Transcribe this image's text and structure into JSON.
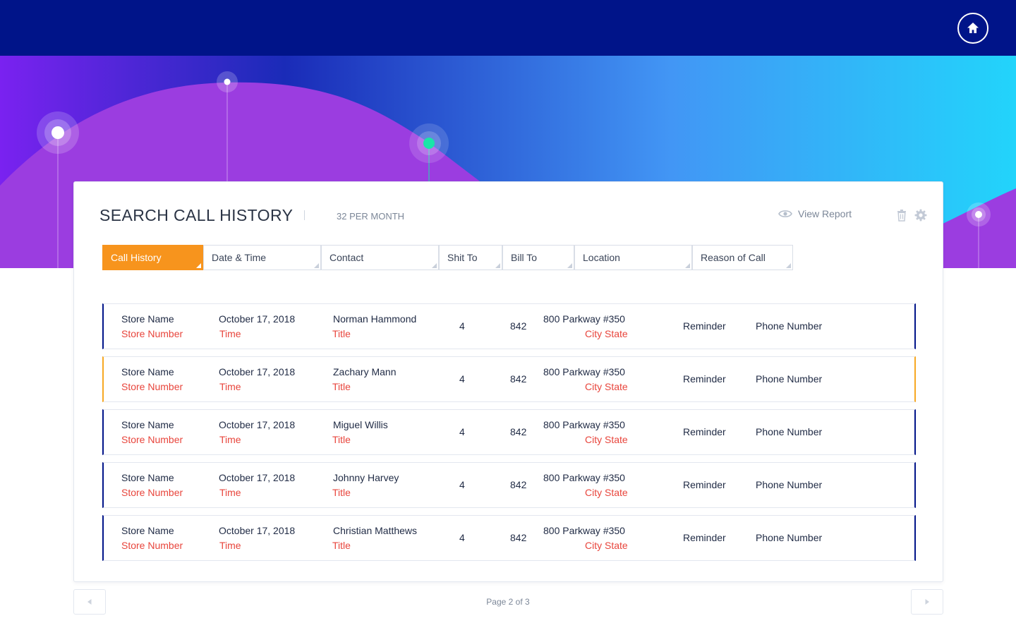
{
  "colors": {
    "top_bar": "#001489",
    "accent": "#f7941d",
    "row_border": "#001489",
    "row_highlight_border": "#f7a823",
    "secondary_text": "#e8453c",
    "hero_gradient": [
      "#7a22f0",
      "#1a2bb8",
      "#4296f5",
      "#22d4fb"
    ],
    "wave": "#9b3de0",
    "marker_green": "#19e6a8"
  },
  "header": {
    "home_icon": "home-icon"
  },
  "card": {
    "title": "SEARCH CALL HISTORY",
    "per_month": "32 PER MONTH",
    "view_report_label": "View Report",
    "view_report_icon": "eye-icon",
    "delete_icon": "trash-icon",
    "settings_icon": "gear-icon"
  },
  "filters": [
    {
      "label": "Call History",
      "active": true
    },
    {
      "label": "Date & Time",
      "active": false
    },
    {
      "label": "Contact",
      "active": false
    },
    {
      "label": "Shit To",
      "active": false
    },
    {
      "label": "Bill To",
      "active": false
    },
    {
      "label": "Location",
      "active": false
    },
    {
      "label": "Reason of Call",
      "active": false
    }
  ],
  "rows": [
    {
      "store": "Store Name",
      "store_number": "Store Number",
      "date": "October 17, 2018",
      "time": "Time",
      "contact": "Norman Hammond",
      "title": "Title",
      "ship_to": "4",
      "bill_to": "842",
      "address": "800 Parkway #350",
      "city_state": "City State",
      "reason": "Reminder",
      "phone": "Phone Number",
      "highlighted": false
    },
    {
      "store": "Store Name",
      "store_number": "Store Number",
      "date": "October 17, 2018",
      "time": "Time",
      "contact": "Zachary Mann",
      "title": "Title",
      "ship_to": "4",
      "bill_to": "842",
      "address": "800 Parkway #350",
      "city_state": "City State",
      "reason": "Reminder",
      "phone": "Phone Number",
      "highlighted": true
    },
    {
      "store": "Store Name",
      "store_number": "Store Number",
      "date": "October 17, 2018",
      "time": "Time",
      "contact": "Miguel Willis",
      "title": "Title",
      "ship_to": "4",
      "bill_to": "842",
      "address": "800 Parkway #350",
      "city_state": "City State",
      "reason": "Reminder",
      "phone": "Phone Number",
      "highlighted": false
    },
    {
      "store": "Store Name",
      "store_number": "Store Number",
      "date": "October 17, 2018",
      "time": "Time",
      "contact": "Johnny Harvey",
      "title": "Title",
      "ship_to": "4",
      "bill_to": "842",
      "address": "800 Parkway #350",
      "city_state": "City State",
      "reason": "Reminder",
      "phone": "Phone Number",
      "highlighted": false
    },
    {
      "store": "Store Name",
      "store_number": "Store Number",
      "date": "October 17, 2018",
      "time": "Time",
      "contact": "Christian Matthews",
      "title": "Title",
      "ship_to": "4",
      "bill_to": "842",
      "address": "800 Parkway #350",
      "city_state": "City State",
      "reason": "Reminder",
      "phone": "Phone Number",
      "highlighted": false
    }
  ],
  "pagination": {
    "label": "Page 2 of 3",
    "current": 2,
    "total": 3,
    "prev_icon": "chevron-left-icon",
    "next_icon": "chevron-right-icon"
  }
}
